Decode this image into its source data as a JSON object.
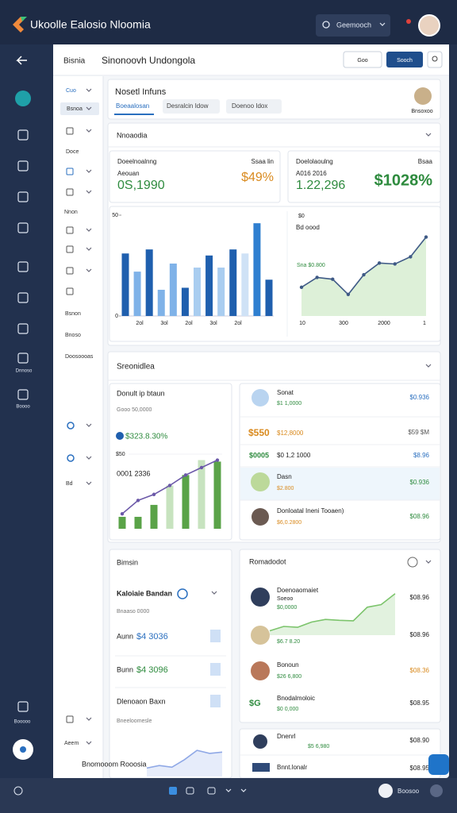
{
  "top_bar": {
    "app_title": "Ukoolle Ealosio Nloomia",
    "search": "Geemooch"
  },
  "sidebar": {
    "labels": [
      "Dnnoso",
      "Boooo",
      "Booooo"
    ]
  },
  "header": {
    "section": "Bisnia",
    "title": "Sinonoovh Undongola",
    "filter_button": "Goo",
    "action_button": "Sooch"
  },
  "sub_nav": [
    "Cuo",
    "Bsnoa",
    "Doce",
    "Nnon",
    "Bsnon",
    "Bnoso",
    "Doosoooas",
    "Bd",
    "Aeem"
  ],
  "overview": {
    "title": "Nosetl Infuns",
    "tabs": [
      "Boeaalosan",
      "Desralcin Idow",
      "Doenoo Idox"
    ],
    "user": "Bnsoxoo"
  },
  "metrics": {
    "title": "Nnoaodia",
    "cards": [
      {
        "label": "Doeelnoalnng",
        "sublabel": "Aeouan",
        "value": "0S,1990",
        "tag": "Ssaa lin",
        "change": "$49%"
      },
      {
        "label": "Doelolaoulng",
        "sublabel": "A016 2016",
        "value": "1.22,296",
        "tag": "Bsaa",
        "change": "$1028%"
      }
    ]
  },
  "bar_chart": {
    "type": "bar",
    "ylim": [
      0,
      50
    ],
    "yticks": [
      0,
      50
    ],
    "x_labels": [
      "2ol",
      "3ol",
      "2ol",
      "3ol",
      "2ol"
    ],
    "values": [
      31,
      22,
      33,
      13,
      26,
      14,
      24,
      30,
      24,
      33,
      31,
      46,
      18
    ],
    "colors": [
      "#1f5fae",
      "#7fb2e8",
      "#1f5fae",
      "#7fb2e8",
      "#7fb2e8",
      "#1f5fae",
      "#a9cdf0",
      "#1f5fae",
      "#a9cdf0",
      "#1f5fae",
      "#cfe2f6",
      "#2f7fd0",
      "#1f5fae"
    ]
  },
  "line_chart": {
    "type": "line",
    "title": "Bd oood",
    "annotation": "Sna $0.800",
    "y_label": "$0",
    "x_labels": [
      "10",
      "300",
      "2000",
      "1"
    ],
    "ylim": [
      0,
      100
    ],
    "values": [
      32,
      43,
      41,
      24,
      46,
      59,
      58,
      66,
      88
    ],
    "color": "#3f5a86"
  },
  "statistics": {
    "title": "Sreonidlea",
    "summary": {
      "title": "Donult ip btaun",
      "subtitle": "Gooo 50,0000",
      "value": "$323.8.30%",
      "chart_label": "0001 2336"
    },
    "combo_chart": {
      "type": "bar",
      "ylim": [
        0,
        50
      ],
      "yticks": [
        {
          "value": 50,
          "label": "$50"
        }
      ],
      "bars": [
        8,
        8,
        16,
        29,
        36,
        46,
        45
      ],
      "bar_colors": [
        "#5aa348",
        "#5aa348",
        "#5aa348",
        "#c7e3bf",
        "#5aa348",
        "#c7e3bf",
        "#5aa348"
      ],
      "line": [
        10,
        19,
        23,
        29,
        36,
        41,
        46
      ],
      "line_color": "#6b58a8"
    },
    "list": [
      {
        "name": "Sonat",
        "detail": "$1 1,0000",
        "amount": "$0.936"
      },
      {
        "name": "$550",
        "detail": "$12,8000",
        "amount": "$59 $M"
      },
      {
        "name": "$0005",
        "detail": "$0 1,2 1000",
        "amount": "$8.96"
      },
      {
        "name": "Dasn",
        "detail": "$2.800",
        "amount": "$0.936"
      },
      {
        "name": "Donloatal Ineni Tooaen)",
        "detail": "$6,0.2800",
        "amount": "$08.96"
      }
    ]
  },
  "budget": {
    "title": "Bimsin",
    "heading": "Kaloiaie Bandan",
    "subtitle": "Bnaaso 0000",
    "rows": [
      {
        "name": "Aunn",
        "amount": "$4 3036"
      },
      {
        "name": "Bunn",
        "amount": "$4 3096"
      }
    ],
    "footer": "Dlenoaon Baxn",
    "footer_sub": "Bneeloomesle",
    "link": "Bnomooom Rooosia",
    "sparkline": {
      "type": "area",
      "ylim": [
        0,
        100
      ],
      "values": [
        20,
        26,
        22,
        40,
        62,
        55,
        58
      ],
      "color": "#8fa8e6"
    }
  },
  "report": {
    "title": "Romadodot",
    "rows": [
      {
        "name": "Doenoaomaiet",
        "sub": "Soeoo",
        "detail": "$0,0000",
        "amount": "$08.96"
      },
      {
        "detail": "$6.7 8.20",
        "amount": "$08.96"
      },
      {
        "name": "Bonoun",
        "detail": "$26 6,800",
        "amount": "$08.36"
      },
      {
        "badge": "$G",
        "name": "Bnodalmoloic",
        "detail": "$0 0,000",
        "amount": "$08.95"
      },
      {
        "name": "Dnenrl",
        "detail": "$5 6,980",
        "amount": "$08.90"
      },
      {
        "name": "Bnnt.lonalr",
        "amount": "$08.95"
      }
    ],
    "sparkline": {
      "type": "area",
      "ylim": [
        0,
        100
      ],
      "values": [
        10,
        20,
        18,
        30,
        36,
        34,
        33,
        64,
        70,
        95
      ],
      "color": "#7cc46c"
    }
  },
  "bottom_bar": {
    "user": "Boosoo"
  }
}
